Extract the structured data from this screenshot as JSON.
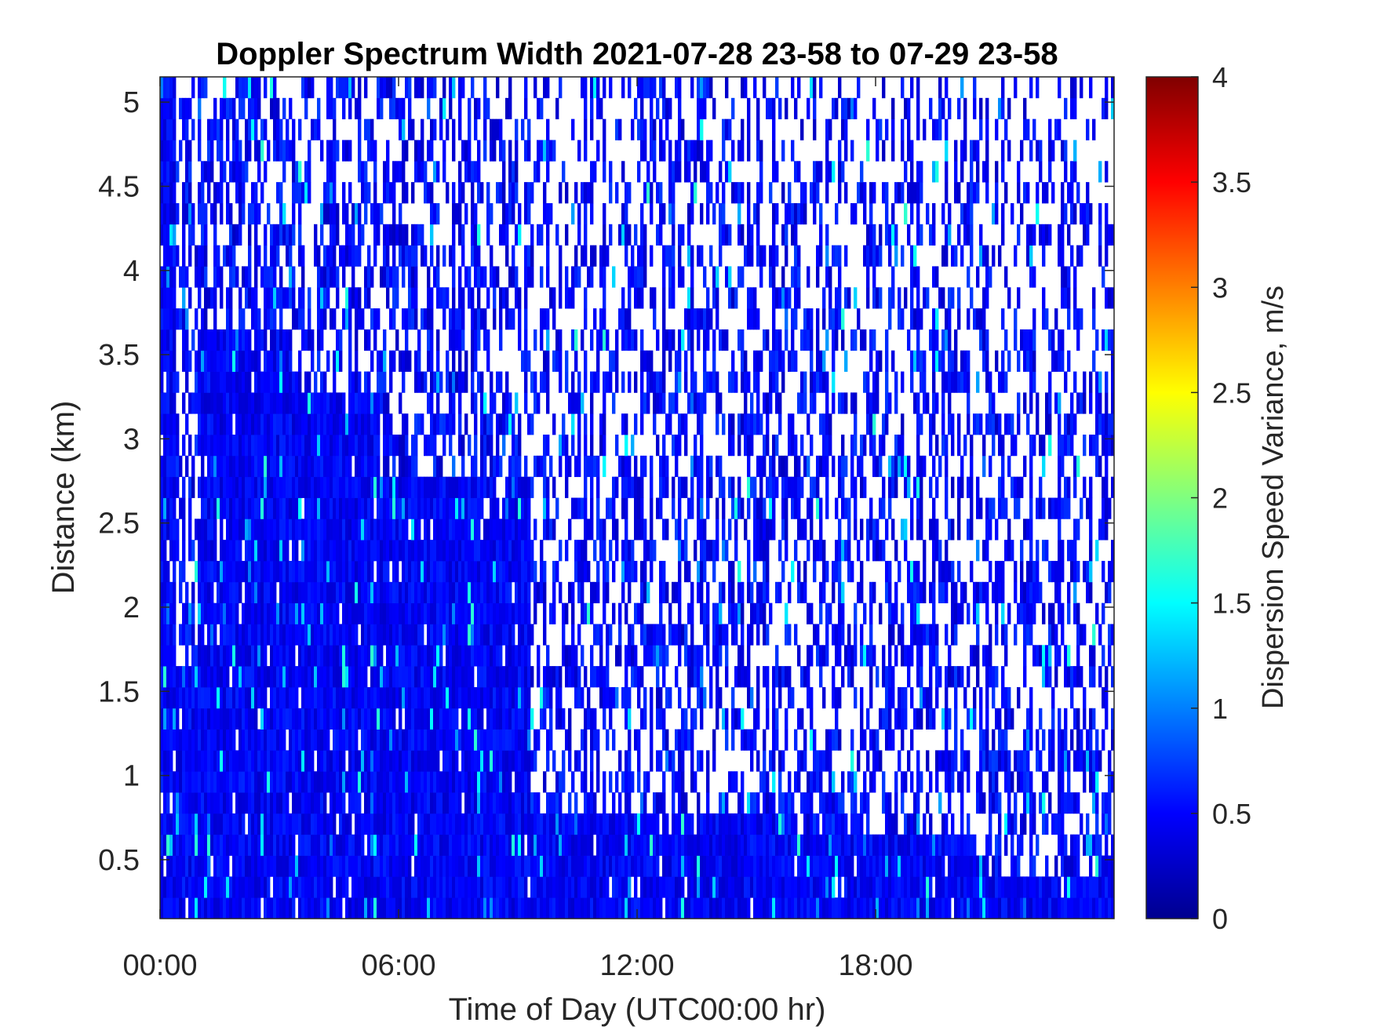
{
  "chart_data": {
    "type": "heatmap",
    "title": "Doppler Spectrum Width 2021-07-28 23-58 to 07-29 23-58",
    "xlabel": "Time of Day (UTC00:00 hr)",
    "ylabel": "Distance (km)",
    "colorbar_label": "Dispersion Speed Variance, m/s",
    "x_range_hours": [
      0,
      24
    ],
    "y_range_km": [
      0.15,
      5.15
    ],
    "color_range": [
      0,
      4
    ],
    "colormap": "jet",
    "x_ticks": [
      {
        "value": 0,
        "label": "00:00"
      },
      {
        "value": 6,
        "label": "06:00"
      },
      {
        "value": 12,
        "label": "12:00"
      },
      {
        "value": 18,
        "label": "18:00"
      }
    ],
    "y_ticks": [
      {
        "value": 0.5,
        "label": "0.5"
      },
      {
        "value": 1,
        "label": "1"
      },
      {
        "value": 1.5,
        "label": "1.5"
      },
      {
        "value": 2,
        "label": "2"
      },
      {
        "value": 2.5,
        "label": "2.5"
      },
      {
        "value": 3,
        "label": "3"
      },
      {
        "value": 3.5,
        "label": "3.5"
      },
      {
        "value": 4,
        "label": "4"
      },
      {
        "value": 4.5,
        "label": "4.5"
      },
      {
        "value": 5,
        "label": "5"
      }
    ],
    "colorbar_ticks": [
      {
        "value": 0,
        "label": "0"
      },
      {
        "value": 0.5,
        "label": "0.5"
      },
      {
        "value": 1,
        "label": "1"
      },
      {
        "value": 1.5,
        "label": "1.5"
      },
      {
        "value": 2,
        "label": "2"
      },
      {
        "value": 2.5,
        "label": "2.5"
      },
      {
        "value": 3,
        "label": "3"
      },
      {
        "value": 3.5,
        "label": "3.5"
      },
      {
        "value": 4,
        "label": "4"
      }
    ],
    "dense_echo_top_profile_km": [
      {
        "from": 0.0,
        "to": 0.4,
        "top": 5.1
      },
      {
        "from": 0.4,
        "to": 1.0,
        "top": 1.6
      },
      {
        "from": 1.0,
        "to": 3.2,
        "top": 3.7
      },
      {
        "from": 3.2,
        "to": 5.5,
        "top": 3.3
      },
      {
        "from": 5.5,
        "to": 9.3,
        "top": 2.8
      },
      {
        "from": 9.3,
        "to": 16.0,
        "top": 0.8
      },
      {
        "from": 16.0,
        "to": 20.5,
        "top": 0.6
      },
      {
        "from": 20.5,
        "to": 24.0,
        "top": 0.4
      }
    ],
    "grid": false,
    "legend": "none"
  }
}
